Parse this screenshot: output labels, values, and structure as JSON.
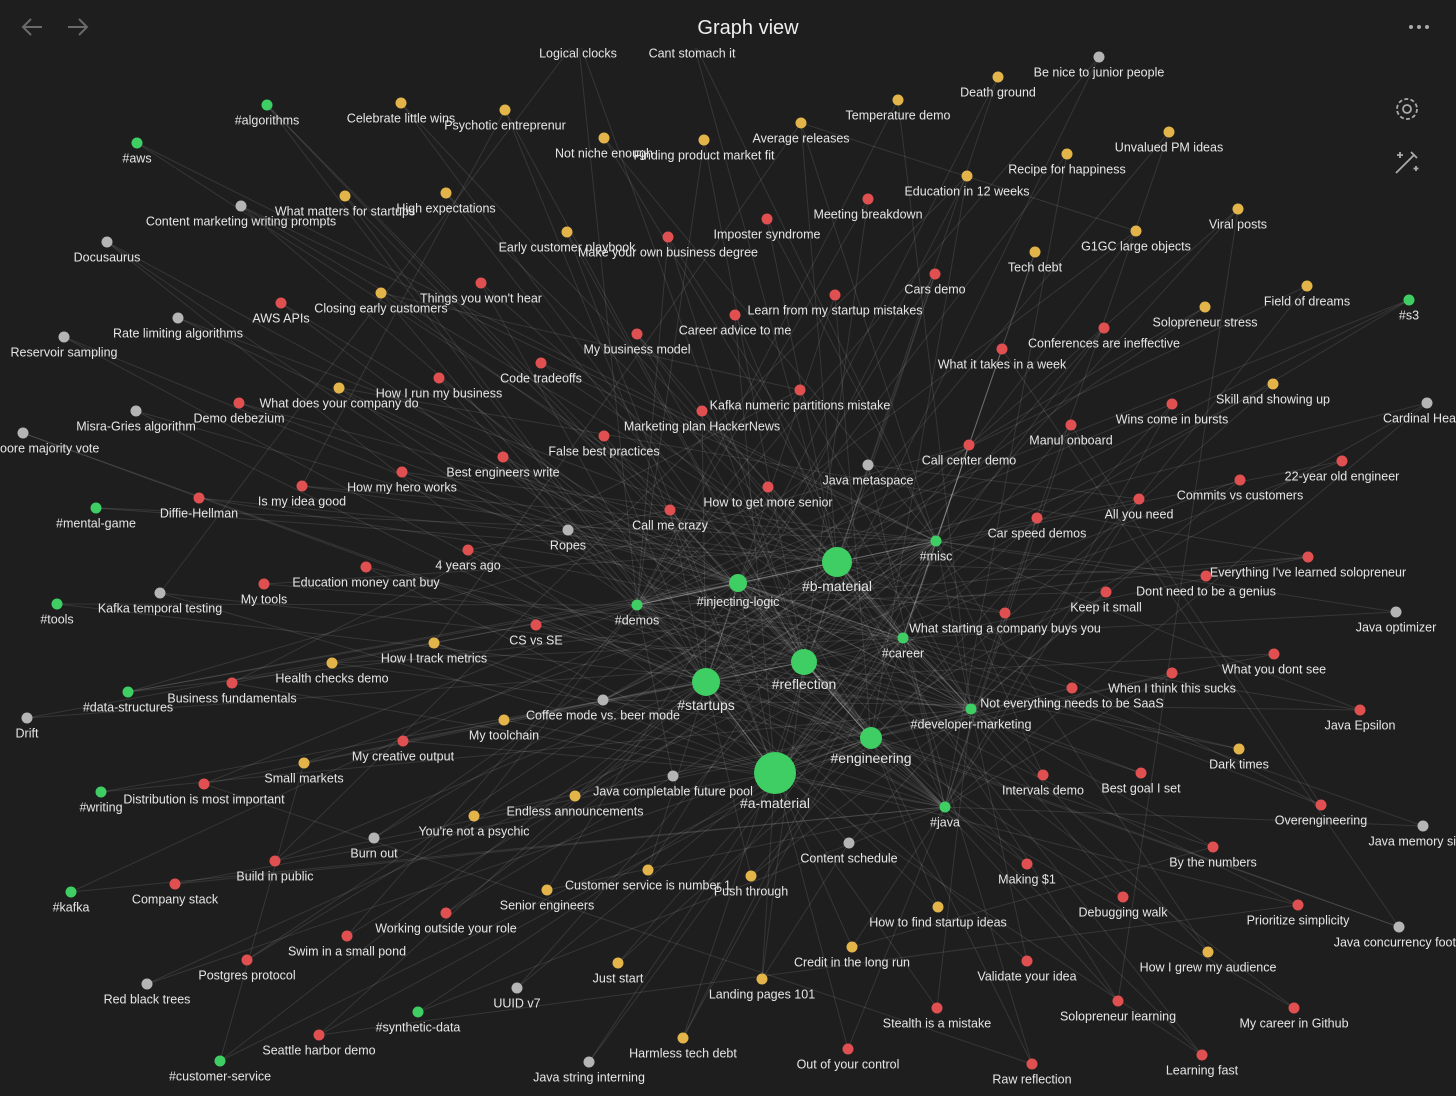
{
  "header": {
    "title": "Graph view"
  },
  "nodes": [
    {
      "label": "#algorithms",
      "color": "#3fce63"
    },
    {
      "label": "#aws",
      "color": "#3fce63"
    },
    {
      "label": "#s3",
      "color": "#3fce63"
    },
    {
      "label": "#mental-game",
      "color": "#3fce63"
    },
    {
      "label": "#tools",
      "color": "#3fce63"
    },
    {
      "label": "#data-structures",
      "color": "#3fce63"
    },
    {
      "label": "#writing",
      "color": "#3fce63"
    },
    {
      "label": "#kafka",
      "color": "#3fce63"
    },
    {
      "label": "#customer-service",
      "color": "#3fce63"
    },
    {
      "label": "#synthetic-data",
      "color": "#3fce63"
    },
    {
      "label": "#demos",
      "color": "#3fce63"
    },
    {
      "label": "#injecting-logic",
      "color": "#3fce63"
    },
    {
      "label": "#b-material",
      "color": "#3fce63"
    },
    {
      "label": "#misc",
      "color": "#3fce63"
    },
    {
      "label": "#career",
      "color": "#3fce63"
    },
    {
      "label": "#reflection",
      "color": "#3fce63"
    },
    {
      "label": "#startups",
      "color": "#3fce63"
    },
    {
      "label": "#developer-marketing",
      "color": "#3fce63"
    },
    {
      "label": "#engineering",
      "color": "#3fce63"
    },
    {
      "label": "#a-material",
      "color": "#3fce63"
    },
    {
      "label": "#java",
      "color": "#3fce63"
    },
    {
      "label": "Celebrate little wins",
      "color": "#e3b449"
    },
    {
      "label": "Psychotic entreprenur",
      "color": "#e3b449"
    },
    {
      "label": "Not niche enough",
      "color": "#e3b449"
    },
    {
      "label": "Finding product market fit",
      "color": "#e3b449"
    },
    {
      "label": "Average releases",
      "color": "#e3b449"
    },
    {
      "label": "Temperature demo",
      "color": "#e3b449"
    },
    {
      "label": "Death ground",
      "color": "#e3b449"
    },
    {
      "label": "Unvalued PM ideas",
      "color": "#e3b449"
    },
    {
      "label": "Recipe for happiness",
      "color": "#e3b449"
    },
    {
      "label": "Education in 12 weeks",
      "color": "#e3b449"
    },
    {
      "label": "What matters for startups",
      "color": "#e3b449"
    },
    {
      "label": "High expectations",
      "color": "#e3b449"
    },
    {
      "label": "Early customer playbook",
      "color": "#e3b449"
    },
    {
      "label": "Tech debt",
      "color": "#e3b449"
    },
    {
      "label": "G1GC large objects",
      "color": "#e3b449"
    },
    {
      "label": "Viral posts",
      "color": "#e3b449"
    },
    {
      "label": "Field of dreams",
      "color": "#e3b449"
    },
    {
      "label": "Solopreneur stress",
      "color": "#e3b449"
    },
    {
      "label": "Closing early customers",
      "color": "#e3b449"
    },
    {
      "label": "What does your company do",
      "color": "#e3b449"
    },
    {
      "label": "Skill and showing up",
      "color": "#e3b449"
    },
    {
      "label": "How I track metrics",
      "color": "#e3b449"
    },
    {
      "label": "Health checks demo",
      "color": "#e3b449"
    },
    {
      "label": "My toolchain",
      "color": "#e3b449"
    },
    {
      "label": "Small markets",
      "color": "#e3b449"
    },
    {
      "label": "Dark times",
      "color": "#e3b449"
    },
    {
      "label": "Endless announcements",
      "color": "#e3b449"
    },
    {
      "label": "You're not a psychic",
      "color": "#e3b449"
    },
    {
      "label": "Customer service is number 1",
      "color": "#e3b449"
    },
    {
      "label": "Push through",
      "color": "#e3b449"
    },
    {
      "label": "Senior engineers",
      "color": "#e3b449"
    },
    {
      "label": "How to find startup ideas",
      "color": "#e3b449"
    },
    {
      "label": "Credit in the long run",
      "color": "#e3b449"
    },
    {
      "label": "Just start",
      "color": "#e3b449"
    },
    {
      "label": "Landing pages 101",
      "color": "#e3b449"
    },
    {
      "label": "Harmless tech debt",
      "color": "#e3b449"
    },
    {
      "label": "Meeting breakdown",
      "color": "#e05050"
    },
    {
      "label": "Imposter syndrome",
      "color": "#e05050"
    },
    {
      "label": "Make your own business degree",
      "color": "#e05050"
    },
    {
      "label": "Cars demo",
      "color": "#e05050"
    },
    {
      "label": "Things you won't hear",
      "color": "#e05050"
    },
    {
      "label": "AWS APIs",
      "color": "#e05050"
    },
    {
      "label": "Learn from my startup mistakes",
      "color": "#e05050"
    },
    {
      "label": "Career advice to me",
      "color": "#e05050"
    },
    {
      "label": "My business model",
      "color": "#e05050"
    },
    {
      "label": "Conferences are ineffective",
      "color": "#e05050"
    },
    {
      "label": "What it takes in a week",
      "color": "#e05050"
    },
    {
      "label": "How I run my business",
      "color": "#e05050"
    },
    {
      "label": "Code tradeoffs",
      "color": "#e05050"
    },
    {
      "label": "Kafka numeric partitions mistake",
      "color": "#e05050"
    },
    {
      "label": "Demo debezium",
      "color": "#e05050"
    },
    {
      "label": "Marketing plan HackerNews",
      "color": "#e05050"
    },
    {
      "label": "Wins come in bursts",
      "color": "#e05050"
    },
    {
      "label": "False best practices",
      "color": "#e05050"
    },
    {
      "label": "Manul onboard",
      "color": "#e05050"
    },
    {
      "label": "Call center demo",
      "color": "#e05050"
    },
    {
      "label": "Best engineers write",
      "color": "#e05050"
    },
    {
      "label": "How my hero works",
      "color": "#e05050"
    },
    {
      "label": "22-year old engineer",
      "color": "#e05050"
    },
    {
      "label": "Is my idea good",
      "color": "#e05050"
    },
    {
      "label": "How to get more senior",
      "color": "#e05050"
    },
    {
      "label": "Diffie-Hellman",
      "color": "#e05050"
    },
    {
      "label": "Commits vs customers",
      "color": "#e05050"
    },
    {
      "label": "All you need",
      "color": "#e05050"
    },
    {
      "label": "Call me crazy",
      "color": "#e05050"
    },
    {
      "label": "Car speed demos",
      "color": "#e05050"
    },
    {
      "label": "4 years ago",
      "color": "#e05050"
    },
    {
      "label": "Education money cant buy",
      "color": "#e05050"
    },
    {
      "label": "My tools",
      "color": "#e05050"
    },
    {
      "label": "Everything I've learned solopreneur",
      "color": "#e05050"
    },
    {
      "label": "Dont need to be a genius",
      "color": "#e05050"
    },
    {
      "label": "Keep it small",
      "color": "#e05050"
    },
    {
      "label": "What starting a company buys you",
      "color": "#e05050"
    },
    {
      "label": "CS vs SE",
      "color": "#e05050"
    },
    {
      "label": "Business fundamentals",
      "color": "#e05050"
    },
    {
      "label": "What you dont see",
      "color": "#e05050"
    },
    {
      "label": "When I think this sucks",
      "color": "#e05050"
    },
    {
      "label": "Not everything needs to be SaaS",
      "color": "#e05050"
    },
    {
      "label": "My creative output",
      "color": "#e05050"
    },
    {
      "label": "Java Epsilon",
      "color": "#e05050"
    },
    {
      "label": "Distribution is most important",
      "color": "#e05050"
    },
    {
      "label": "Intervals demo",
      "color": "#e05050"
    },
    {
      "label": "Best goal I set",
      "color": "#e05050"
    },
    {
      "label": "Overengineering",
      "color": "#e05050"
    },
    {
      "label": "By the numbers",
      "color": "#e05050"
    },
    {
      "label": "Making $1",
      "color": "#e05050"
    },
    {
      "label": "Build in public",
      "color": "#e05050"
    },
    {
      "label": "Company stack",
      "color": "#e05050"
    },
    {
      "label": "Debugging walk",
      "color": "#e05050"
    },
    {
      "label": "Prioritize simplicity",
      "color": "#e05050"
    },
    {
      "label": "Working outside your role",
      "color": "#e05050"
    },
    {
      "label": "Swim in a small pond",
      "color": "#e05050"
    },
    {
      "label": "Postgres protocol",
      "color": "#e05050"
    },
    {
      "label": "Validate your idea",
      "color": "#e05050"
    },
    {
      "label": "Solopreneur learning",
      "color": "#e05050"
    },
    {
      "label": "Stealth is a mistake",
      "color": "#e05050"
    },
    {
      "label": "My career in Github",
      "color": "#e05050"
    },
    {
      "label": "Seattle harbor demo",
      "color": "#e05050"
    },
    {
      "label": "Out of your control",
      "color": "#e05050"
    },
    {
      "label": "Raw reflection",
      "color": "#e05050"
    },
    {
      "label": "Learning fast",
      "color": "#e05050"
    },
    {
      "label": "How I grew my audience",
      "color": "#e3b449"
    },
    {
      "label": "Be nice to junior people",
      "color": "#b5b5b5"
    },
    {
      "label": "Content marketing writing prompts",
      "color": "#b5b5b5"
    },
    {
      "label": "Docusaurus",
      "color": "#b5b5b5"
    },
    {
      "label": "Rate limiting algorithms",
      "color": "#b5b5b5"
    },
    {
      "label": "Reservoir sampling",
      "color": "#b5b5b5"
    },
    {
      "label": "Misra-Gries algorithm",
      "color": "#b5b5b5"
    },
    {
      "label": "oore majority vote",
      "color": "#b5b5b5"
    },
    {
      "label": "Java metaspace",
      "color": "#b5b5b5"
    },
    {
      "label": "Ropes",
      "color": "#b5b5b5"
    },
    {
      "label": "Kafka temporal testing",
      "color": "#b5b5b5"
    },
    {
      "label": "Java optimizer",
      "color": "#b5b5b5"
    },
    {
      "label": "Drift",
      "color": "#b5b5b5"
    },
    {
      "label": "Coffee mode vs. beer mode",
      "color": "#b5b5b5"
    },
    {
      "label": "Java completable future pool",
      "color": "#b5b5b5"
    },
    {
      "label": "Burn out",
      "color": "#b5b5b5"
    },
    {
      "label": "Content schedule",
      "color": "#b5b5b5"
    },
    {
      "label": "Java memory si",
      "color": "#b5b5b5"
    },
    {
      "label": "Java concurrency foot",
      "color": "#b5b5b5"
    },
    {
      "label": "Cardinal Hea",
      "color": "#b5b5b5"
    },
    {
      "label": "Red black trees",
      "color": "#b5b5b5"
    },
    {
      "label": "UUID v7",
      "color": "#b5b5b5"
    },
    {
      "label": "Java string interning",
      "color": "#b5b5b5"
    },
    {
      "label": "Logical clocks",
      "color": "#b5b5b5"
    },
    {
      "label": "Cant stomach it",
      "color": "#b5b5b5"
    }
  ]
}
